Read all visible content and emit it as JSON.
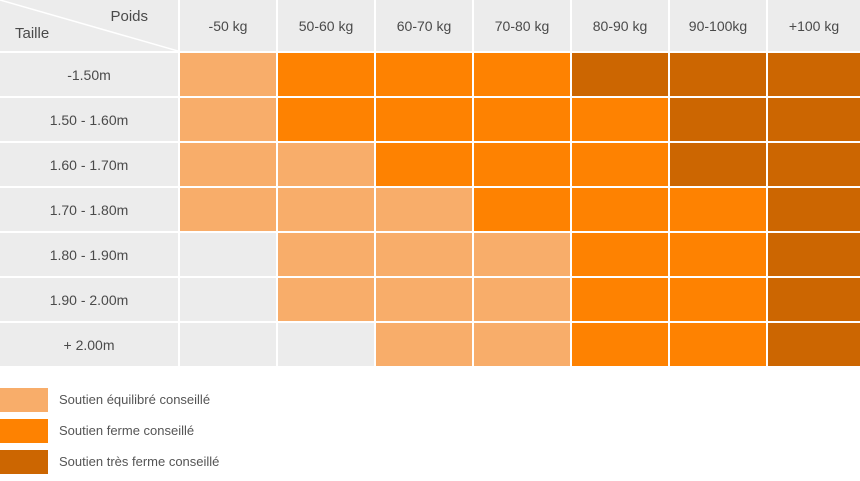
{
  "chart_data": {
    "type": "heatmap",
    "corner": {
      "column_header": "Poids",
      "row_header": "Taille"
    },
    "columns": [
      "-50 kg",
      "50-60 kg",
      "60-70 kg",
      "70-80 kg",
      "80-90 kg",
      "90-100kg",
      "+100 kg"
    ],
    "rows": [
      "-1.50m",
      "1.50 - 1.60m",
      "1.60 - 1.70m",
      "1.70 - 1.80m",
      "1.80 - 1.90m",
      "1.90 - 2.00m",
      "+ 2.00m"
    ],
    "levels": [
      [
        1,
        2,
        2,
        2,
        3,
        3,
        3
      ],
      [
        1,
        2,
        2,
        2,
        2,
        3,
        3
      ],
      [
        1,
        1,
        2,
        2,
        2,
        3,
        3
      ],
      [
        1,
        1,
        1,
        2,
        2,
        2,
        3
      ],
      [
        0,
        1,
        1,
        1,
        2,
        2,
        3
      ],
      [
        0,
        1,
        1,
        1,
        2,
        2,
        3
      ],
      [
        0,
        0,
        1,
        1,
        2,
        2,
        3
      ]
    ],
    "legend": [
      {
        "level": 1,
        "label": "Soutien équilibré conseillé",
        "color": "#f8ad6a"
      },
      {
        "level": 2,
        "label": "Soutien ferme conseillé",
        "color": "#fe8201"
      },
      {
        "level": 3,
        "label": "Soutien très ferme conseillé",
        "color": "#cc6601"
      }
    ],
    "empty_color": "#ececec"
  }
}
